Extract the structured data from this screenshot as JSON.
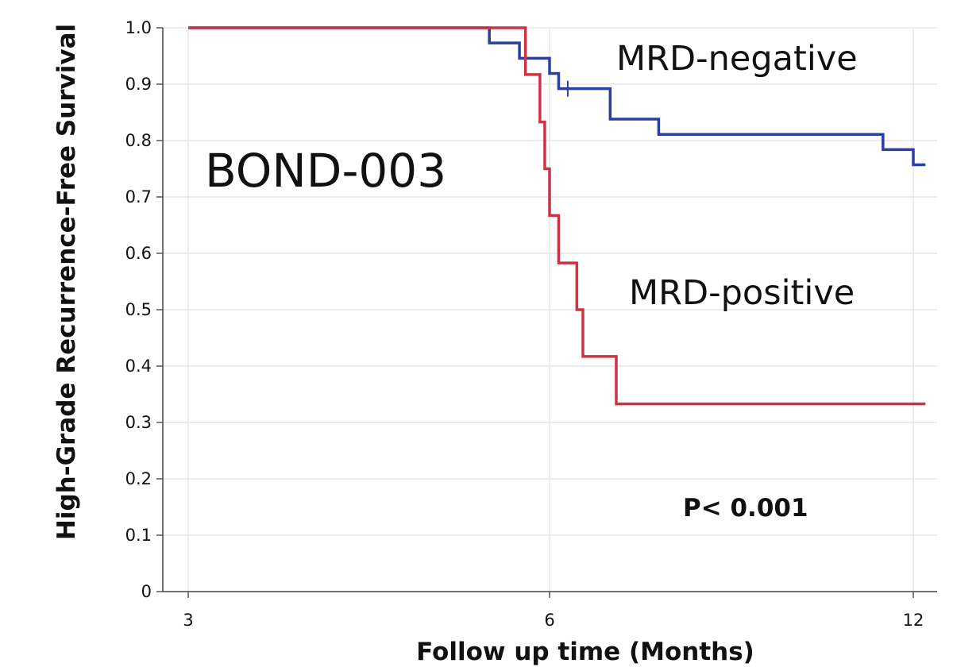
{
  "chart_data": {
    "type": "line",
    "step": true,
    "title": "BOND-003",
    "xlabel": "Follow up time (Months)",
    "ylabel": "High-Grade Recurrence-Free Survival",
    "x_ticks": [
      "3",
      "6",
      "12"
    ],
    "y_ticks": [
      "0",
      "0.1",
      "0.2",
      "0.3",
      "0.4",
      "0.5",
      "0.6",
      "0.7",
      "0.8",
      "0.9",
      "1.0"
    ],
    "ylim": [
      0,
      1.0
    ],
    "grid": true,
    "annotation": "P< 0.001",
    "series": [
      {
        "name": "MRD-negative",
        "color": "#2a3fa0",
        "points": [
          [
            3,
            1.0
          ],
          [
            5.5,
            0.973
          ],
          [
            5.75,
            0.946
          ],
          [
            6.0,
            0.919
          ],
          [
            6.15,
            0.892
          ],
          [
            7.0,
            0.838
          ],
          [
            7.8,
            0.811
          ],
          [
            11.5,
            0.784
          ],
          [
            12.0,
            0.757
          ]
        ],
        "end_x": 12.2
      },
      {
        "name": "MRD-positive",
        "color": "#cc3344",
        "points": [
          [
            3,
            1.0
          ],
          [
            5.8,
            0.917
          ],
          [
            5.92,
            0.833
          ],
          [
            5.96,
            0.75
          ],
          [
            6.0,
            0.667
          ],
          [
            6.15,
            0.583
          ],
          [
            6.45,
            0.5
          ],
          [
            6.55,
            0.417
          ],
          [
            7.1,
            0.333
          ]
        ],
        "end_x": 12.2
      }
    ]
  }
}
